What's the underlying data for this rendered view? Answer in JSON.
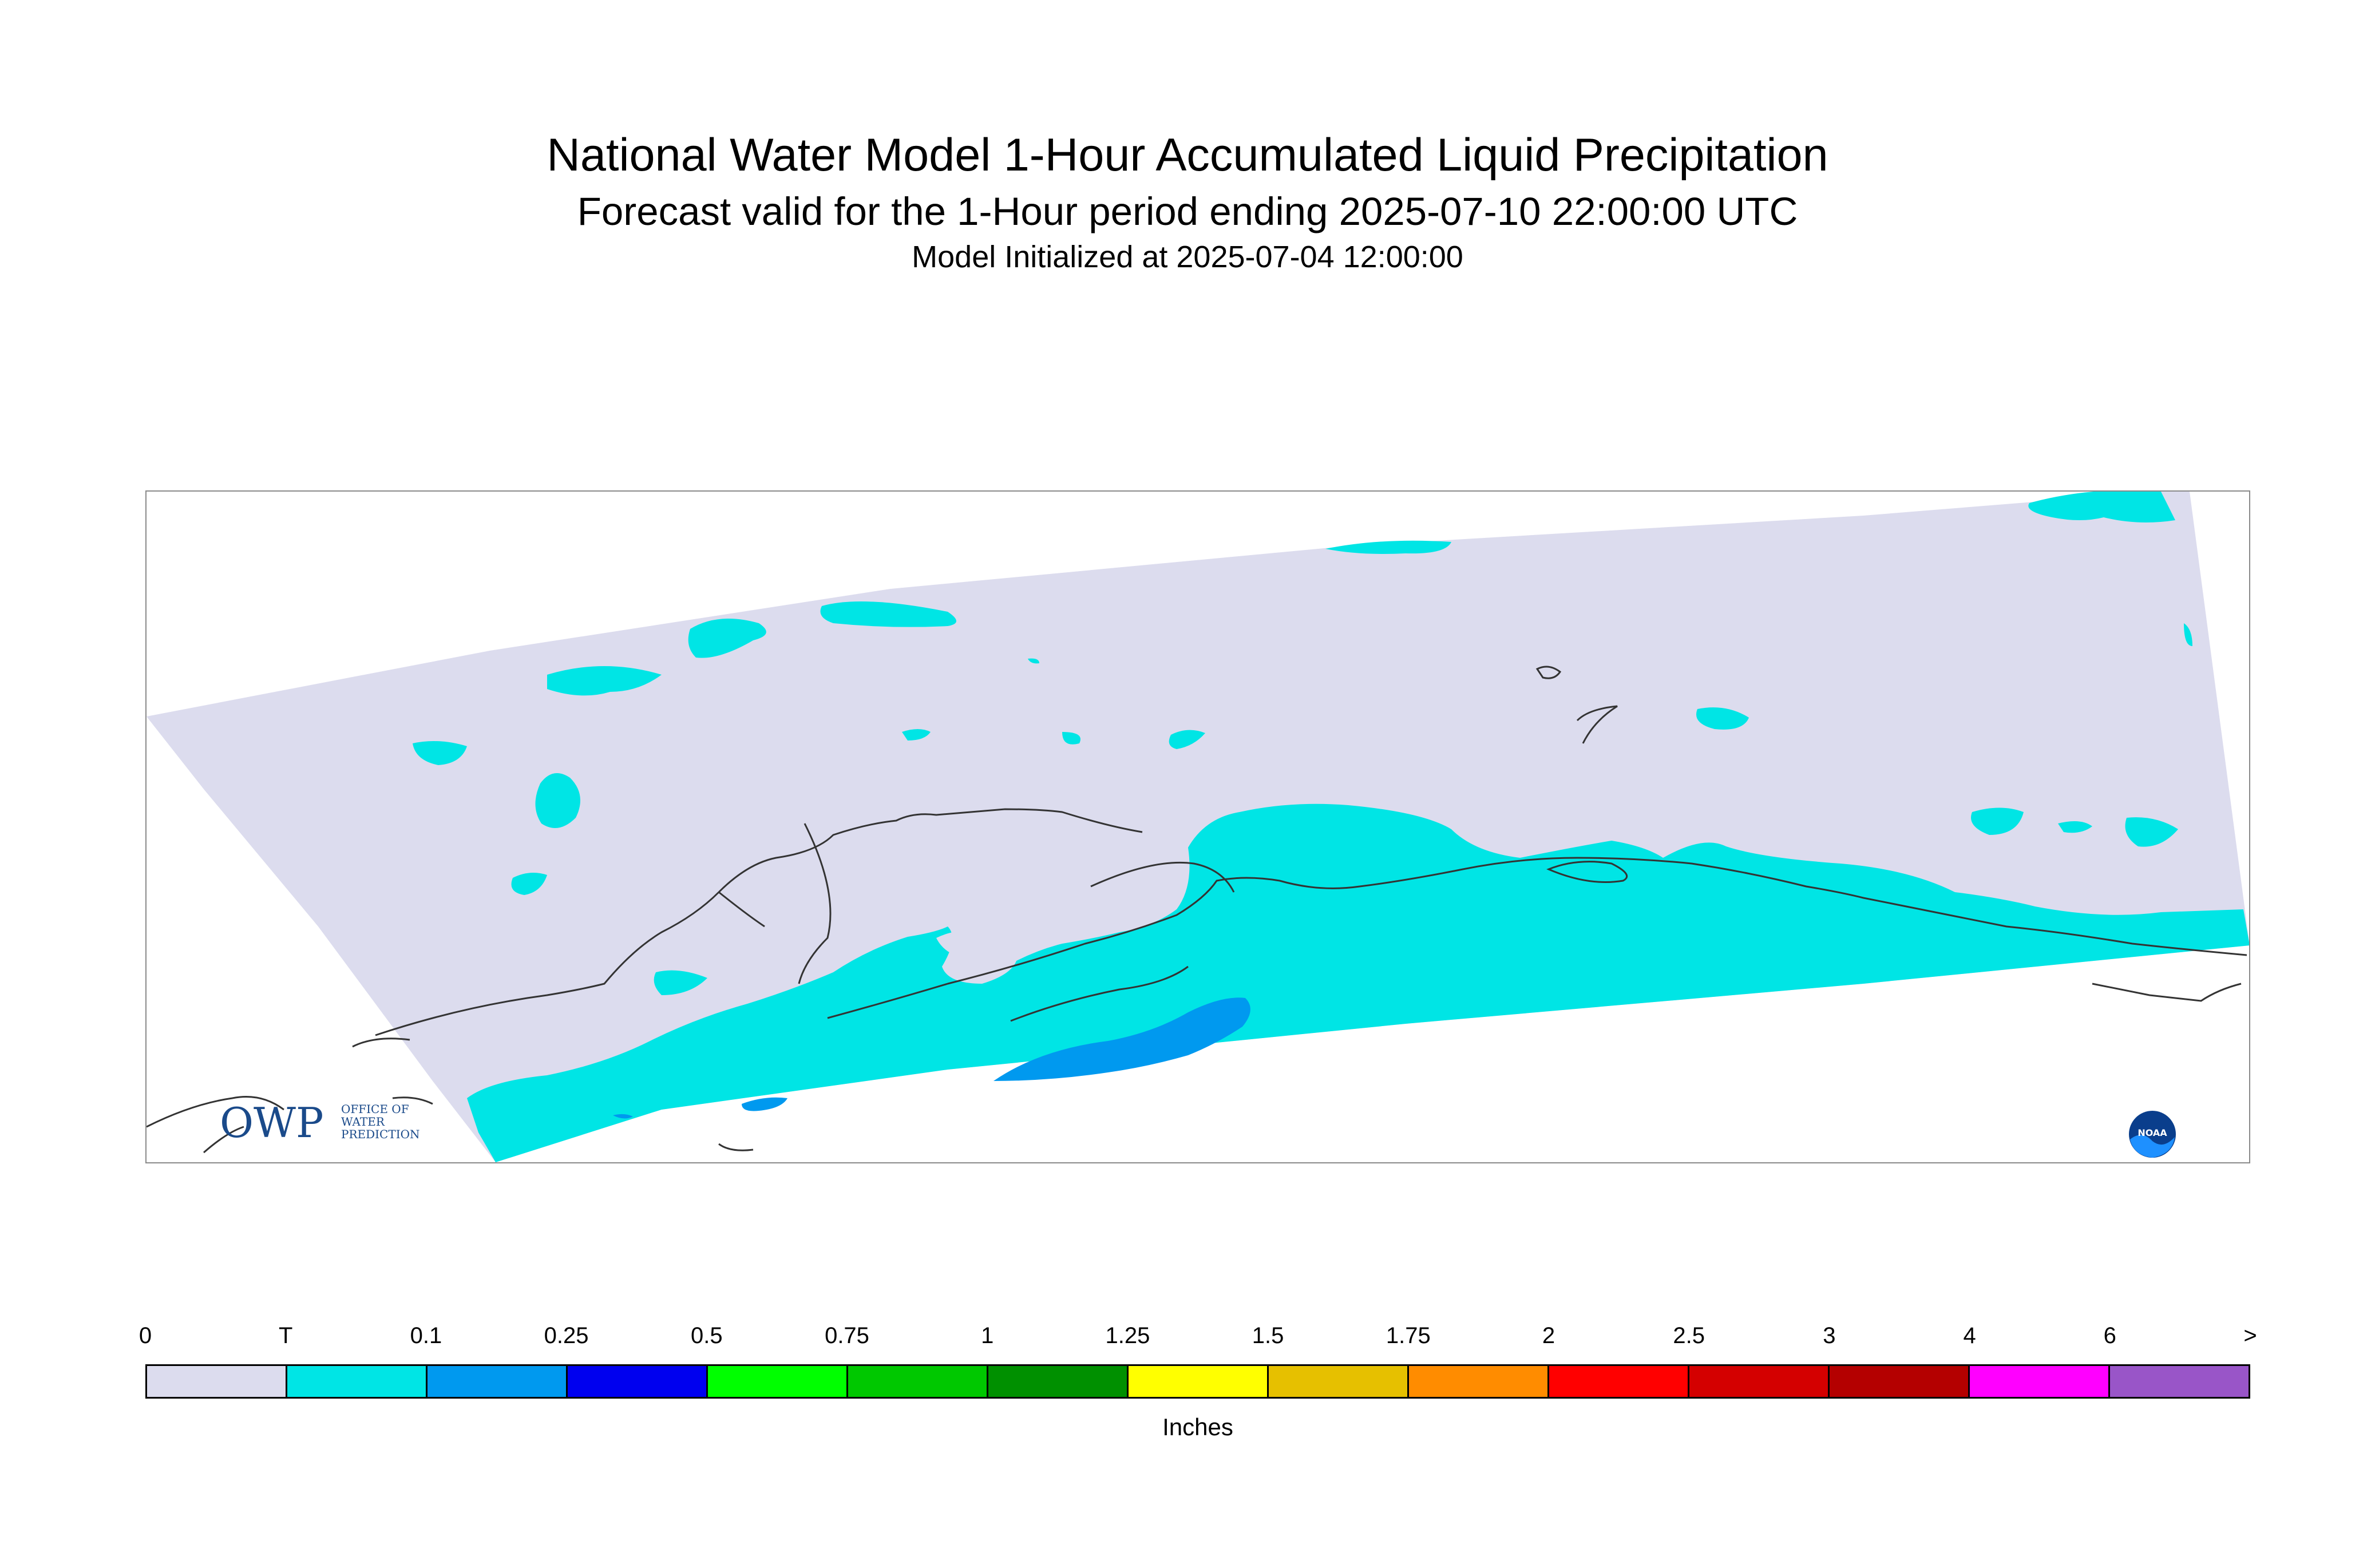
{
  "title": "National Water Model 1-Hour Accumulated Liquid Precipitation",
  "subtitle": "Forecast valid for the 1-Hour period ending 2025-07-10 22:00:00 UTC",
  "init_line": "Model Initialized at 2025-07-04 12:00:00",
  "logos": {
    "owp": {
      "letters": "OWP",
      "text": [
        "OFFICE OF",
        "WATER",
        "PREDICTION"
      ]
    },
    "noaa": {
      "letters": "NOAA"
    }
  },
  "legend": {
    "units": "Inches",
    "ticks": [
      "0",
      "T",
      "0.1",
      "0.25",
      "0.5",
      "0.75",
      "1",
      "1.25",
      "1.5",
      "1.75",
      "2",
      "2.5",
      "3",
      "4",
      "6",
      ">"
    ],
    "colors": [
      "#dcdcee",
      "#00e5e5",
      "#0099ef",
      "#0000ef",
      "#00ff00",
      "#00c800",
      "#009000",
      "#ffff00",
      "#e6c000",
      "#ff8c00",
      "#ff0000",
      "#d40000",
      "#b40000",
      "#ff00ff",
      "#9955c8"
    ]
  },
  "map_colors": {
    "no_precip": "#dcdcee",
    "trace": "#00e5e5",
    "light": "#0099ef",
    "coast": "#333333"
  }
}
